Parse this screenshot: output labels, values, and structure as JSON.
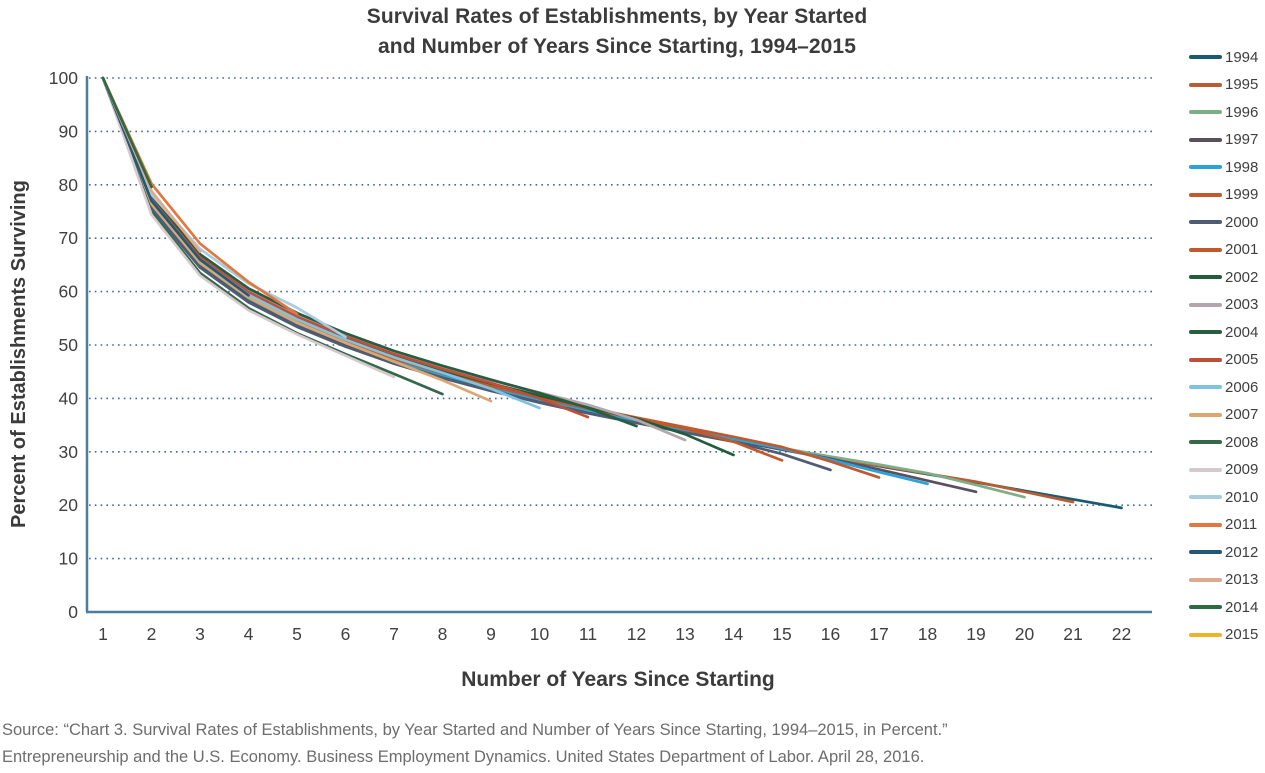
{
  "title": {
    "line1": "Survival Rates of Establishments, by Year Started",
    "line2": "and Number of Years Since Starting, 1994–2015"
  },
  "source": {
    "line1": "Source: “Chart 3. Survival Rates of Establishments, by Year Started and Number of Years Since Starting, 1994–2015, in Percent.”",
    "line2": "Entrepreneurship and the U.S. Economy. Business Employment Dynamics. United States Department of Labor. April 28, 2016."
  },
  "chart_data": {
    "type": "line",
    "title": "Survival Rates of Establishments, by Year Started and Number of Years Since Starting, 1994–2015",
    "xlabel": "Number of Years Since Starting",
    "ylabel": "Percent of Establishments Surviving",
    "x_ticks": [
      1,
      2,
      3,
      4,
      5,
      6,
      7,
      8,
      9,
      10,
      11,
      12,
      13,
      14,
      15,
      16,
      17,
      18,
      19,
      20,
      21,
      22
    ],
    "y_ticks": [
      0,
      10,
      20,
      30,
      40,
      50,
      60,
      70,
      80,
      90,
      100
    ],
    "xlim": [
      1,
      22
    ],
    "ylim": [
      0,
      100
    ],
    "grid": "horizontal-dotted",
    "legend_position": "right",
    "axis_color": "#4e7d9c",
    "grid_color": "#41699c",
    "series": [
      {
        "name": "1994",
        "color": "#1b5a73",
        "values": [
          100,
          76.5,
          65.5,
          59.0,
          54.3,
          50.5,
          47.2,
          44.4,
          42.0,
          39.8,
          37.8,
          35.9,
          34.1,
          32.3,
          30.6,
          28.9,
          27.3,
          25.8,
          24.3,
          22.7,
          21.1,
          19.5
        ]
      },
      {
        "name": "1995",
        "color": "#b85c33",
        "values": [
          100,
          76.0,
          65.0,
          58.5,
          53.8,
          50.0,
          46.8,
          44.1,
          41.7,
          39.5,
          37.5,
          35.7,
          33.9,
          32.2,
          30.5,
          28.9,
          27.4,
          25.9,
          24.4,
          22.5,
          20.6
        ]
      },
      {
        "name": "1996",
        "color": "#7fad88",
        "values": [
          100,
          76.2,
          65.2,
          58.7,
          54.0,
          50.3,
          47.0,
          44.3,
          41.9,
          39.7,
          37.7,
          35.8,
          34.0,
          32.3,
          30.7,
          29.1,
          27.6,
          26.0,
          23.8,
          21.5
        ]
      },
      {
        "name": "1997",
        "color": "#5c4f5c",
        "values": [
          100,
          75.8,
          64.8,
          58.2,
          53.6,
          49.9,
          46.7,
          44.0,
          41.6,
          39.4,
          37.4,
          35.6,
          33.8,
          32.1,
          30.4,
          28.7,
          26.7,
          24.6,
          22.5
        ]
      },
      {
        "name": "1998",
        "color": "#2aa3dc",
        "values": [
          100,
          76.3,
          65.3,
          58.8,
          54.1,
          50.4,
          47.1,
          44.4,
          42.0,
          39.8,
          37.8,
          35.9,
          34.1,
          32.4,
          30.6,
          28.5,
          26.2,
          24.0
        ]
      },
      {
        "name": "1999",
        "color": "#c05a2e",
        "values": [
          100,
          76.8,
          65.8,
          59.2,
          54.6,
          50.9,
          47.6,
          44.9,
          42.5,
          40.3,
          38.3,
          36.4,
          34.6,
          32.8,
          30.9,
          28.2,
          25.2
        ]
      },
      {
        "name": "2000",
        "color": "#4e5d73",
        "values": [
          100,
          75.5,
          64.5,
          58.0,
          53.4,
          49.7,
          46.5,
          43.8,
          41.4,
          39.2,
          37.2,
          35.4,
          33.6,
          31.9,
          29.6,
          26.6
        ]
      },
      {
        "name": "2001",
        "color": "#c2592b",
        "values": [
          100,
          76.6,
          65.6,
          59.1,
          54.4,
          50.7,
          47.4,
          44.7,
          42.3,
          40.1,
          38.1,
          36.2,
          34.3,
          31.9,
          28.4
        ]
      },
      {
        "name": "2002",
        "color": "#235c38",
        "values": [
          100,
          77.0,
          66.2,
          59.6,
          55.0,
          51.2,
          47.9,
          45.2,
          42.8,
          40.5,
          38.4,
          36.2,
          33.3,
          29.4
        ]
      },
      {
        "name": "2003",
        "color": "#b3a6ad",
        "values": [
          100,
          77.4,
          66.6,
          60.1,
          55.5,
          51.8,
          48.5,
          45.8,
          43.4,
          41.1,
          38.8,
          36.0,
          32.2
        ]
      },
      {
        "name": "2004",
        "color": "#2a5c40",
        "values": [
          100,
          77.8,
          67.0,
          60.6,
          56.0,
          52.2,
          48.9,
          46.1,
          43.5,
          41.0,
          38.2,
          34.8
        ]
      },
      {
        "name": "2005",
        "color": "#bf4f38",
        "values": [
          100,
          77.2,
          66.4,
          59.9,
          55.3,
          51.6,
          48.3,
          45.5,
          42.9,
          40.0,
          36.5
        ]
      },
      {
        "name": "2006",
        "color": "#7fc3de",
        "values": [
          100,
          76.9,
          66.0,
          59.4,
          54.8,
          51.0,
          47.7,
          44.8,
          41.8,
          38.2
        ]
      },
      {
        "name": "2007",
        "color": "#dca670",
        "values": [
          100,
          76.4,
          65.4,
          58.9,
          54.2,
          50.4,
          46.9,
          43.4,
          39.5
        ]
      },
      {
        "name": "2008",
        "color": "#35684a",
        "values": [
          100,
          74.9,
          63.5,
          56.9,
          52.2,
          48.3,
          44.6,
          40.8
        ]
      },
      {
        "name": "2009",
        "color": "#d5c9cd",
        "values": [
          100,
          74.4,
          63.0,
          56.5,
          52.0,
          48.0,
          44.0
        ]
      },
      {
        "name": "2010",
        "color": "#a9cde0",
        "values": [
          100,
          78.2,
          68.0,
          61.5,
          57.0,
          51.5
        ]
      },
      {
        "name": "2011",
        "color": "#e2773f",
        "values": [
          100,
          80.2,
          69.0,
          61.8,
          55.8
        ]
      },
      {
        "name": "2012",
        "color": "#205a78",
        "values": [
          100,
          77.0,
          66.0,
          59.3
        ]
      },
      {
        "name": "2013",
        "color": "#e0a98f",
        "values": [
          100,
          78.8,
          67.5
        ]
      },
      {
        "name": "2014",
        "color": "#2e6b44",
        "values": [
          100,
          79.6
        ]
      },
      {
        "name": "2015",
        "color": "#efb32a",
        "values": [
          100
        ]
      }
    ]
  }
}
